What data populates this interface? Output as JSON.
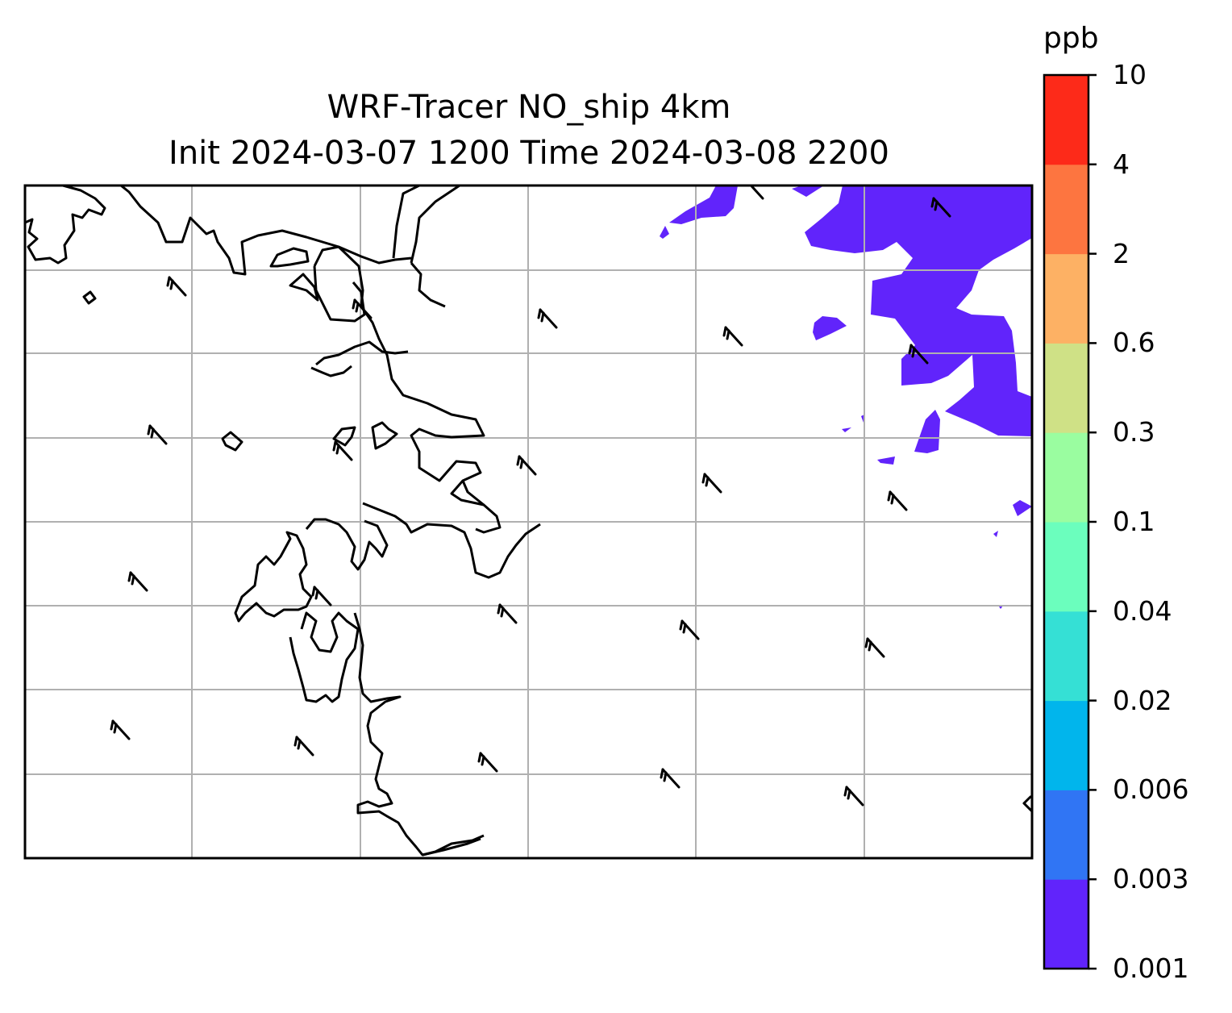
{
  "title": {
    "line1": "WRF-Tracer NO_ship 4km",
    "line2": "Init 2024-03-07 1200 Time 2024-03-08 2200"
  },
  "colorbar": {
    "unit": "ppb",
    "ticks": [
      "0.001",
      "0.003",
      "0.006",
      "0.02",
      "0.04",
      "0.1",
      "0.3",
      "0.6",
      "2",
      "4",
      "10"
    ],
    "colors": [
      "#6124fb",
      "#3075f4",
      "#01b5ec",
      "#35e0d5",
      "#6bfebd",
      "#9afda0",
      "#cfe186",
      "#fdb164",
      "#fd7540",
      "#fd2a19"
    ]
  },
  "map": {
    "type": "filled-contour-with-wind-barbs",
    "variable": "NO_ship",
    "gridlines": true,
    "visible_fill_level": "0.001-0.003",
    "coastline_color": "#000000",
    "gridline_color": "#b0b0b0"
  }
}
